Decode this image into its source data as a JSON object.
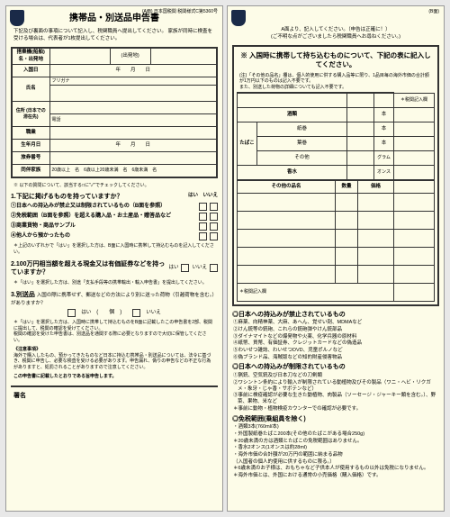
{
  "a": {
    "corner": "(A面)\n日本国税関\n税関様式C第5360号",
    "title": "携帯品・別送品申告書",
    "intro": "下記及び裏面の事項について記入し、税関職員へ提出してください。\n家族が同時に検査を受ける場合は、代表者が1枚提出してください。",
    "f": {
      "flight": "搭乗機(船舶)名・出発地",
      "dep": "(出発地)",
      "arrive": "入国日",
      "y": "年",
      "m": "月",
      "d": "日",
      "name": "氏名",
      "kana": "フリガナ",
      "addr": "住所\n(日本での\n滞在先)",
      "tel": "電話",
      "occ": "職業",
      "dob": "生年月日",
      "pass": "旅券番号",
      "fam": "同伴家族",
      "f1": "20歳以上",
      "f2": "6歳以上20歳未満",
      "f3": "6歳未満",
      "u": "名"
    },
    "chk": "※ 以下の質問について、該当する□に\"✓\"でチェックしてください。",
    "q1": {
      "h": "1.下記に掲げるものを持っていますか？",
      "yes": "はい",
      "no": "いいえ",
      "a": "①日本への持込みが禁止又は制限されているもの（B面を参照）",
      "b": "②免税範囲（B面を参照）を超える購入品・お土産品・贈答品など",
      "c": "③商業貨物・商品サンプル",
      "d": "④他人から預かったもの",
      "n": "＊上記のいずれかで「はい」を選択した方は、B面に入国時に携帯して持込むものを記入してください。"
    },
    "q2": {
      "h": "2.100万円相当額を超える現金又は有価証券などを持っていますか？",
      "yes": "はい",
      "no": "いいえ",
      "n": "＊「はい」を選択した方は、別途「支払手段等の携帯輸出・輸入申告書」を提出してください。"
    },
    "q3": {
      "h": "3.別送品",
      "t": "入国の際に携帯せず、郵送などの方法により別に送った荷物（引越荷物を含む。）がありますか？",
      "yes": "はい",
      "no": "いいえ",
      "p": "個",
      "n": "＊「はい」を選択した方は、入国時に携帯して持込むものをB面に記載したこの申告書を2部、税関に提出して、税関の確認を受けてください。\n税関の確認を受けた申告書は、別送品を通関する際に必要となりますので大切に保管してください。"
    },
    "caution": {
      "h": "《注意事項》",
      "t": "海外で購入したもの、預かってきたものなど日本に持込む携帯品・別送品については、法令に基づき、税関に申告し、必要な検査を受ける必要があります。申告漏れ、偽りの申告などの不正な行為がありますと、処罰されることがありますので注意してください。"
    },
    "conf": "この申告書に記載したとおりである旨申告します。",
    "sig": "署名"
  },
  "b": {
    "corner": "(B面)",
    "top": "A面より、記入してください。（申告は正確に！）\n(ご不明な点がございましたら税関職員へお尋ねください。)",
    "hdr": "※ 入国時に携帯して持ち込むものについて、下記の表に記入してください。",
    "note": "(注)「その他の品名」欄は、個人的使用に供する購入品等に限り、1品目毎の海外市価の合計額が1万円以下のものは記入不要です。\nまた、別送した荷物の詳細についても記入不要です。",
    "col": "＊税関記入欄",
    "cat": {
      "sake": "酒類",
      "tb": "たばこ",
      "c1": "紙巻",
      "c2": "葉巻",
      "c3": "その他",
      "pf": "香水",
      "u1": "本",
      "u2": "本",
      "u3": "本",
      "u4": "グラム",
      "u5": "オンス"
    },
    "oth": {
      "h": "その他の品名",
      "q": "数量",
      "v": "価格"
    },
    "rec": "＊税関記入欄",
    "s1": {
      "h": "◎日本への持込みが禁止されているもの",
      "i": [
        "①麻薬、向精神薬、大麻、あへん、覚せい剤、MDMAなど",
        "②けん銃等の銃砲、これらの銃砲弾やけん銃部品",
        "③ダイナマイトなどの爆発物や火薬、化学兵器の原材料",
        "④紙幣、貨幣、有価証券、クレジットカードなどの偽造品",
        "⑤わいせつ雑誌、わいせつDVD、児童ポルノなど",
        "⑥偽ブランド品、海賊版などの知的財産侵害物品"
      ]
    },
    "s2": {
      "h": "◎日本への持込みが制限されているもの",
      "i": [
        "①猟銃、空気銃及び日本刀などの刀剣類",
        "②ワシントン条約により輸入が制限されている動植物及びその製品（ワニ・ヘビ・リクガメ・象牙・じゃ香・サボテンなど）",
        "③事前に検疫確認が必要な生きた動植物、肉製品（ソーセージ・ジャーキー類を含む。）、野菜、果物、米など",
        "＊事前に動物・植物検疫カウンターでの確認が必要です。"
      ]
    },
    "s3": {
      "h": "◎免税範囲(乗組員を除く)",
      "i": [
        "・酒類3本(760ml/本)",
        "・外国製紙巻たばこ200本(その他のたばこがある場合250g)",
        "＊20歳未満の方は酒類とたばこの免税範囲はありません。",
        "・香水2オンス(1オンスは約28ml)",
        "・海外市価の合計額が20万円の範囲に納まる品物",
        "（入国者の個人的使用に供するものに限る。）",
        "＊6歳未満のお子様は、おもちゃなど子供本人が使用するもの以外は免税になりません。",
        "＊海外市価とは、外国における通常の小売価格（購入価格）です。"
      ]
    }
  }
}
